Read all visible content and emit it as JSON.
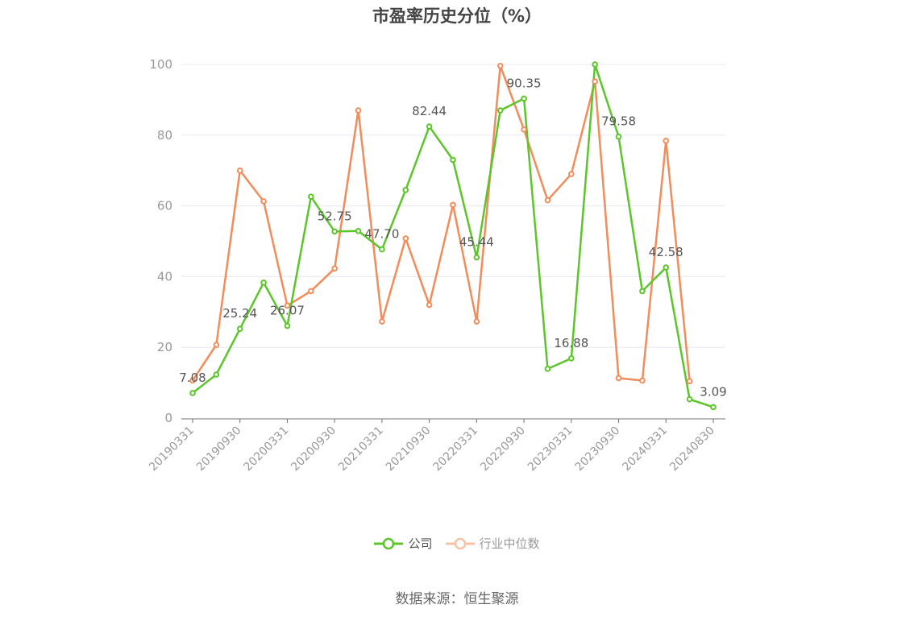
{
  "title": "市盈率历史分位（%）",
  "source_text": "数据来源：恒生聚源",
  "colors": {
    "company": "#5bc52a",
    "industry": "#f28c5a",
    "grid": "#e6e8ef",
    "axis": "#999999",
    "text": "#555555"
  },
  "chart_data": {
    "type": "line",
    "title": "市盈率历史分位（%）",
    "xlabel": "",
    "ylabel": "",
    "ylim": [
      0,
      100
    ],
    "yticks": [
      0,
      20,
      40,
      60,
      80,
      100
    ],
    "grid": true,
    "legend_position": "bottom-center",
    "x": [
      "20190331",
      "20190630",
      "20190930",
      "20191231",
      "20200331",
      "20200630",
      "20200930",
      "20201231",
      "20210331",
      "20210630",
      "20210930",
      "20211231",
      "20220331",
      "20220630",
      "20220930",
      "20221231",
      "20230331",
      "20230630",
      "20230930",
      "20231231",
      "20240331",
      "20240630",
      "20240830"
    ],
    "xtick_labels": [
      "20190331",
      "20190930",
      "20200331",
      "20200930",
      "20210331",
      "20210930",
      "20220331",
      "20220930",
      "20230331",
      "20230930",
      "20240331",
      "20240830"
    ],
    "series": [
      {
        "name": "公司",
        "color": "#5bc52a",
        "values": [
          7.08,
          12.3,
          25.24,
          38.3,
          26.07,
          62.6,
          52.75,
          52.9,
          47.7,
          64.5,
          82.44,
          73.0,
          45.44,
          87.0,
          90.35,
          13.9,
          16.88,
          100.0,
          79.58,
          35.9,
          42.58,
          5.3,
          3.09
        ],
        "labels": [
          "7.08",
          null,
          "25.24",
          null,
          "26.07",
          null,
          "52.75",
          null,
          "47.70",
          null,
          "82.44",
          null,
          "45.44",
          null,
          "90.35",
          null,
          "16.88",
          null,
          "79.58",
          null,
          "42.58",
          null,
          "3.09"
        ]
      },
      {
        "name": "行业中位数",
        "color": "#f28c5a",
        "values": [
          10.6,
          20.7,
          70.0,
          61.3,
          31.8,
          35.9,
          42.3,
          87.0,
          27.3,
          50.8,
          32.0,
          60.3,
          27.3,
          99.6,
          81.6,
          61.6,
          69.0,
          95.2,
          11.3,
          10.6,
          78.4,
          10.4,
          null
        ]
      }
    ]
  }
}
